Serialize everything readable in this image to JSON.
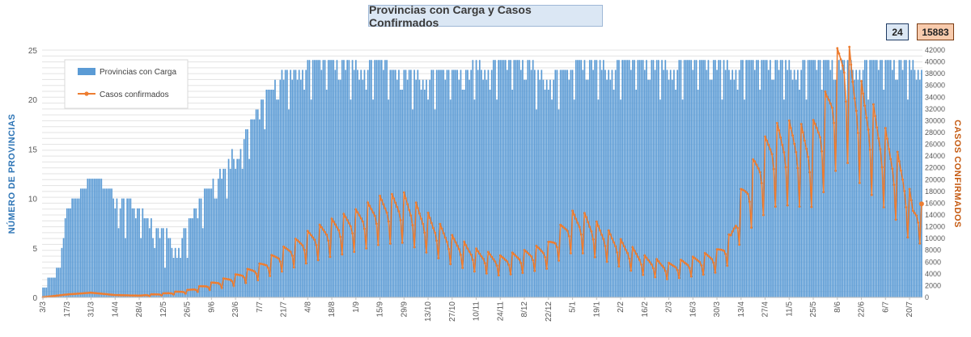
{
  "chart_title": "Provincias con Carga y Casos Confirmados",
  "latest": {
    "provinces": "24",
    "cases": "15883"
  },
  "colors": {
    "bars": "#5b9bd5",
    "line": "#ed7d31",
    "left_axis_title": "#2e75b6",
    "right_axis_title": "#c55a11",
    "grid": "#d9d9d9"
  },
  "chart_data": {
    "type": "bar+line",
    "title": "Provincias con Carga y Casos Confirmados",
    "ylabel": "NÚMERO DE PROVINCIAS",
    "y2label": "CASOS CONFIRMADOS",
    "ylim": [
      0,
      25
    ],
    "y2lim": [
      0,
      42000
    ],
    "y_ticks": [
      "0",
      "5",
      "10",
      "15",
      "20",
      "25"
    ],
    "y2_ticks": [
      "0",
      "2000",
      "4000",
      "6000",
      "8000",
      "10000",
      "12000",
      "14000",
      "16000",
      "18000",
      "20000",
      "22000",
      "24000",
      "26000",
      "28000",
      "30000",
      "32000",
      "34000",
      "36000",
      "38000",
      "40000",
      "42000"
    ],
    "x_tick_labels": [
      "3/3",
      "17/3",
      "31/3",
      "14/4",
      "28/4",
      "12/5",
      "26/5",
      "9/6",
      "23/6",
      "7/7",
      "21/7",
      "4/8",
      "18/8",
      "1/9",
      "15/9",
      "29/9",
      "13/10",
      "27/10",
      "10/11",
      "24/11",
      "8/12",
      "22/12",
      "5/1",
      "19/1",
      "2/2",
      "16/2",
      "2/3",
      "16/3",
      "30/3",
      "13/4",
      "27/4",
      "11/5",
      "25/5",
      "8/6",
      "22/6",
      "6/7",
      "20/7"
    ],
    "x_start_date": "2020-03-03",
    "n_days": 512,
    "grid": true,
    "legend": "top-left",
    "series": [
      {
        "name": "Provincias con Carga",
        "type": "bar",
        "axis": "left",
        "keyframes": [
          [
            0,
            1
          ],
          [
            6,
            2
          ],
          [
            10,
            3
          ],
          [
            14,
            9
          ],
          [
            20,
            10
          ],
          [
            28,
            12
          ],
          [
            40,
            11
          ],
          [
            55,
            9
          ],
          [
            68,
            7
          ],
          [
            78,
            6
          ],
          [
            86,
            8
          ],
          [
            95,
            11
          ],
          [
            105,
            13
          ],
          [
            115,
            16
          ],
          [
            125,
            19
          ],
          [
            135,
            22
          ],
          [
            143,
            23
          ],
          [
            150,
            24
          ],
          [
            170,
            24
          ],
          [
            230,
            23
          ],
          [
            270,
            24
          ],
          [
            300,
            23
          ],
          [
            320,
            24
          ],
          [
            512,
            24
          ]
        ],
        "min_offsets": [
          0,
          0,
          0,
          -1,
          0,
          -2,
          0,
          -1,
          0,
          0,
          -3,
          0,
          -1,
          -2,
          0,
          0,
          -4,
          0,
          -1,
          0,
          -2,
          0,
          -1,
          0
        ]
      },
      {
        "name": "Casos confirmados",
        "type": "line",
        "axis": "right",
        "keyframes": [
          [
            0,
            30
          ],
          [
            14,
            500
          ],
          [
            28,
            800
          ],
          [
            42,
            400
          ],
          [
            56,
            300
          ],
          [
            70,
            600
          ],
          [
            84,
            1100
          ],
          [
            98,
            2200
          ],
          [
            112,
            3400
          ],
          [
            126,
            5000
          ],
          [
            140,
            7500
          ],
          [
            154,
            9800
          ],
          [
            168,
            11600
          ],
          [
            182,
            13000
          ],
          [
            196,
            15000
          ],
          [
            210,
            15500
          ],
          [
            224,
            12500
          ],
          [
            238,
            9200
          ],
          [
            252,
            7200
          ],
          [
            266,
            6200
          ],
          [
            280,
            7000
          ],
          [
            294,
            8200
          ],
          [
            300,
            10400
          ],
          [
            308,
            12800
          ],
          [
            316,
            12400
          ],
          [
            322,
            11200
          ],
          [
            336,
            8600
          ],
          [
            350,
            6200
          ],
          [
            364,
            5100
          ],
          [
            378,
            6000
          ],
          [
            392,
            7100
          ],
          [
            400,
            9600
          ],
          [
            406,
            16000
          ],
          [
            414,
            21000
          ],
          [
            424,
            25600
          ],
          [
            436,
            26200
          ],
          [
            446,
            25000
          ],
          [
            456,
            31000
          ],
          [
            462,
            36800
          ],
          [
            466,
            40200
          ],
          [
            472,
            33800
          ],
          [
            478,
            31000
          ],
          [
            490,
            25000
          ],
          [
            500,
            20000
          ],
          [
            506,
            14000
          ],
          [
            512,
            15883
          ]
        ],
        "weekly_pattern": [
          1.15,
          1.1,
          1.05,
          1.0,
          0.95,
          0.85,
          0.6
        ]
      }
    ]
  }
}
